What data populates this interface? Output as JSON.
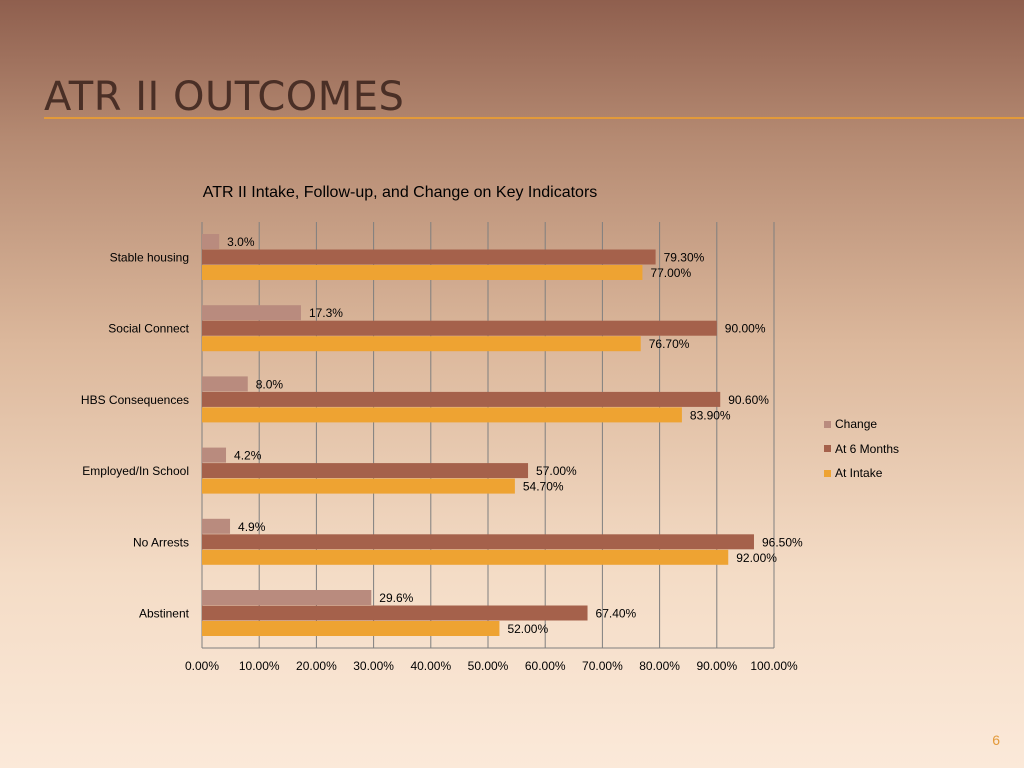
{
  "slide": {
    "title": "ATR II OUTCOMES",
    "page_number": "6"
  },
  "chart_data": {
    "type": "bar",
    "orientation": "horizontal",
    "title": "ATR II Intake, Follow-up, and  Change on Key Indicators",
    "categories": [
      "Stable housing",
      "Social Connect",
      "HBS Consequences",
      "Employed/In School",
      "No Arrests",
      "Abstinent"
    ],
    "series": [
      {
        "name": "Change",
        "values": [
          3.0,
          17.3,
          8.0,
          4.2,
          4.9,
          29.6
        ],
        "labels": [
          "3.0%",
          "17.3%",
          "8.0%",
          "4.2%",
          "4.9%",
          "29.6%"
        ],
        "color": "#b98b7e"
      },
      {
        "name": "At 6 Months",
        "values": [
          79.3,
          90.0,
          90.6,
          57.0,
          96.5,
          67.4
        ],
        "labels": [
          "79.30%",
          "90.00%",
          "90.60%",
          "57.00%",
          "96.50%",
          "67.40%"
        ],
        "color": "#a5614b"
      },
      {
        "name": "At Intake",
        "values": [
          77.0,
          76.7,
          83.9,
          54.7,
          92.0,
          52.0
        ],
        "labels": [
          "77.00%",
          "76.70%",
          "83.90%",
          "54.70%",
          "92.00%",
          "52.00%"
        ],
        "color": "#eea332"
      }
    ],
    "xlim": [
      0,
      100
    ],
    "x_ticks": [
      "0.00%",
      "10.00%",
      "20.00%",
      "30.00%",
      "40.00%",
      "50.00%",
      "60.00%",
      "70.00%",
      "80.00%",
      "90.00%",
      "100.00%"
    ],
    "grid": "vertical",
    "legend_position": "right",
    "gridline_color": "#7f7f7f"
  }
}
